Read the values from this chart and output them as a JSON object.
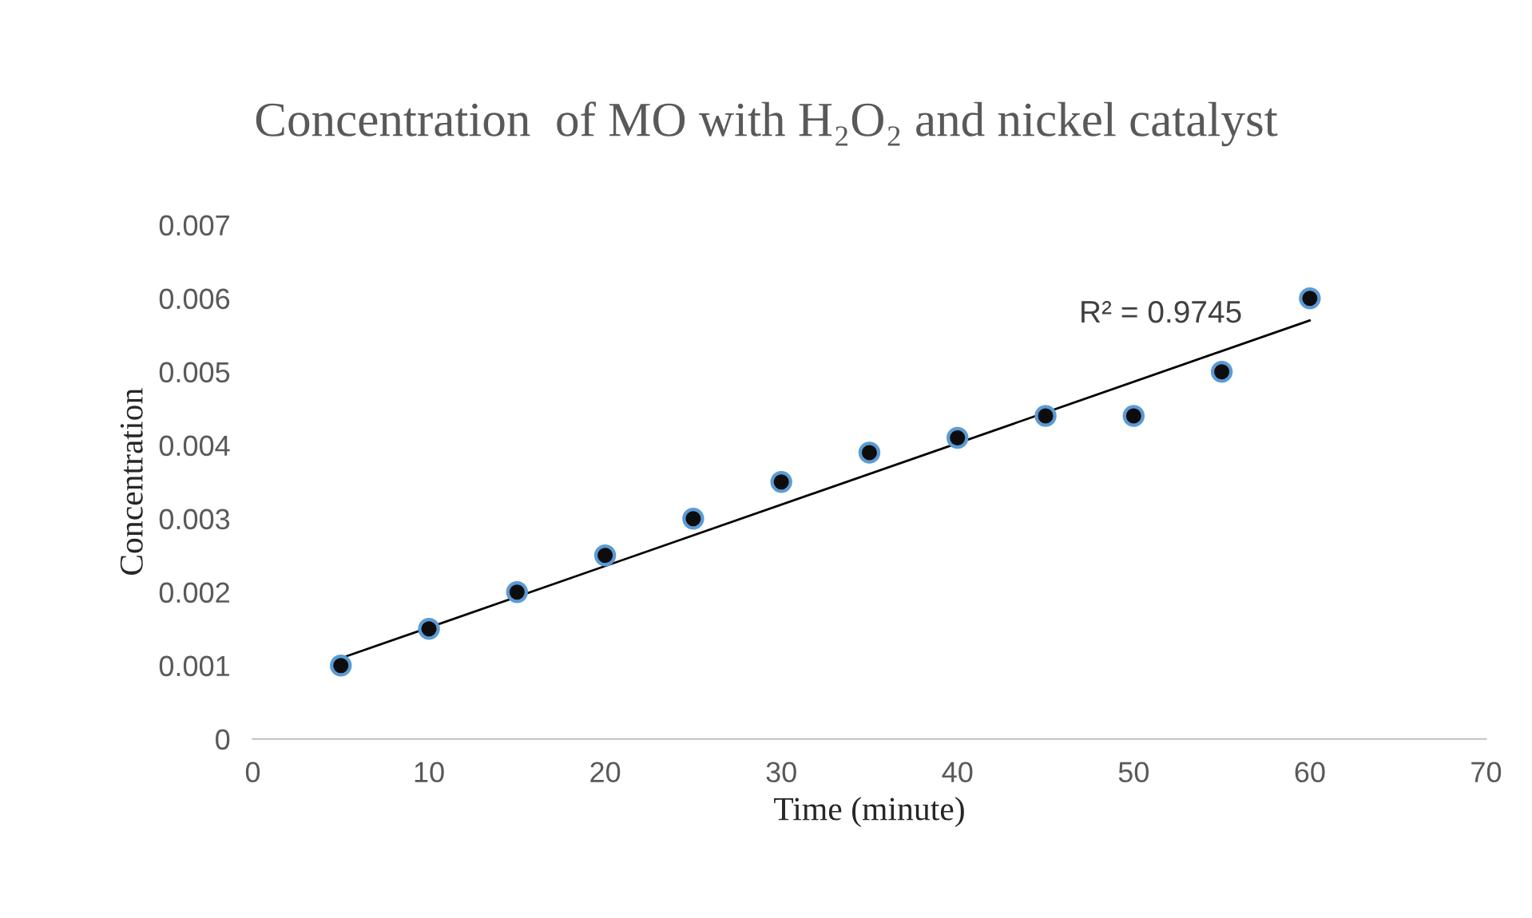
{
  "chart_data": {
    "type": "scatter",
    "title": "Concentration  of MO with H₂O₂ and nickel catalyst",
    "xlabel": "Time (minute)",
    "ylabel": "Concentration",
    "x": [
      5,
      10,
      15,
      20,
      25,
      30,
      35,
      40,
      45,
      50,
      55,
      60
    ],
    "series": [
      {
        "marker": "circle",
        "color": "#0d0d0d",
        "values": [
          0.001,
          0.0015,
          0.002,
          0.0025,
          0.003,
          0.0035,
          0.0039,
          0.0041,
          0.0044,
          0.0044,
          0.005,
          0.006
        ]
      },
      {
        "type": "line",
        "marker": "none",
        "color": "#000000",
        "x": [
          5,
          60
        ],
        "values": [
          0.0011,
          0.0057
        ]
      }
    ],
    "annotations": [
      "R² = 0.9745"
    ],
    "xlim": [
      0,
      70
    ],
    "xticks": [
      0,
      10,
      20,
      30,
      40,
      50,
      60,
      70
    ],
    "ylim": [
      0,
      0.007
    ],
    "yticks": [
      0,
      0.001,
      0.002,
      0.003,
      0.004,
      0.005,
      0.006,
      0.007
    ],
    "grid": false
  }
}
